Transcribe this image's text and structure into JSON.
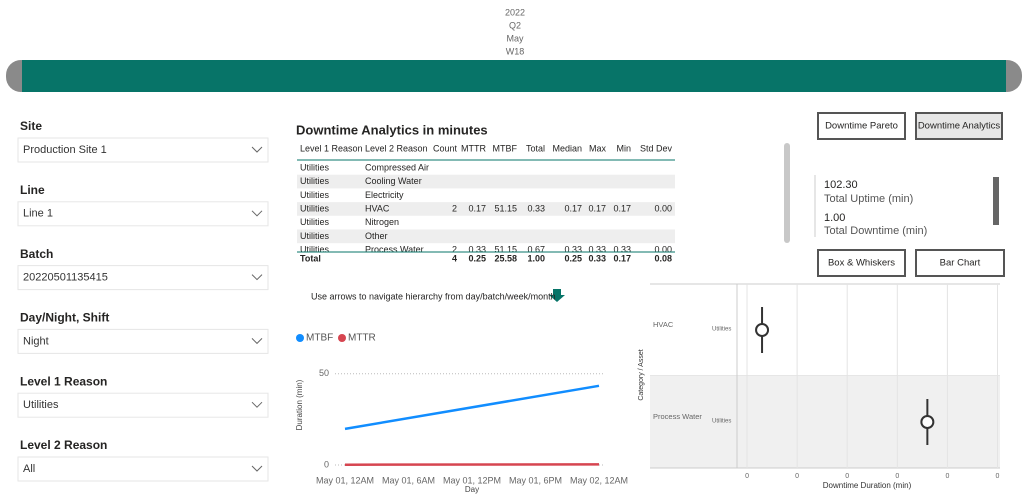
{
  "header": {
    "periods": [
      "2022",
      "Q2",
      "May",
      "W18"
    ]
  },
  "filters": [
    {
      "label": "Site",
      "value": "Production Site 1"
    },
    {
      "label": "Line",
      "value": "Line 1"
    },
    {
      "label": "Batch",
      "value": "20220501135415"
    },
    {
      "label": "Day/Night, Shift",
      "value": "Night"
    },
    {
      "label": "Level 1 Reason",
      "value": "Utilities"
    },
    {
      "label": "Level 2 Reason",
      "value": "All"
    }
  ],
  "table": {
    "title": "Downtime Analytics in minutes",
    "columns": [
      "Level 1 Reason",
      "Level 2 Reason",
      "Count",
      "MTTR",
      "MTBF",
      "Total",
      "Median",
      "Max",
      "Min",
      "Std Dev"
    ],
    "rows": [
      [
        "Utilities",
        "Compressed Air"
      ],
      [
        "Utilities",
        "Cooling Water"
      ],
      [
        "Utilities",
        "Electricity"
      ],
      [
        "Utilities",
        "HVAC",
        "2",
        "0.17",
        "51.15",
        "0.33",
        "0.17",
        "0.17",
        "0.17",
        "0.00"
      ],
      [
        "Utilities",
        "Nitrogen"
      ],
      [
        "Utilities",
        "Other"
      ],
      [
        "Utilities",
        "Process Water",
        "2",
        "0.33",
        "51.15",
        "0.67",
        "0.33",
        "0.33",
        "0.33",
        "0.00"
      ]
    ],
    "total": {
      "label": "Total",
      "values": [
        "4",
        "0.25",
        "25.58",
        "1.00",
        "0.25",
        "0.33",
        "0.17",
        "0.08"
      ]
    }
  },
  "hint": "Use arrows to navigate hierarchy from day/batch/week/month",
  "buttons": {
    "top": [
      "Downtime Pareto",
      "Downtime Analytics"
    ],
    "bottom": [
      "Box & Whiskers",
      "Bar Chart"
    ]
  },
  "kpis": [
    {
      "value": "102.30",
      "label": "Total Uptime (min)"
    },
    {
      "value": "1.00",
      "label": "Total Downtime (min)"
    }
  ],
  "line_chart": {
    "type": "line",
    "xlabel": "Day",
    "ylabel": "Duration (min)",
    "x": [
      0,
      24
    ],
    "xlim": [
      0,
      24
    ],
    "xticks": [
      {
        "value": 0,
        "label": "May 01, 12AM"
      },
      {
        "value": 6,
        "label": "May 01, 6AM"
      },
      {
        "value": 12,
        "label": "May 01, 12PM"
      },
      {
        "value": 18,
        "label": "May 01, 6PM"
      },
      {
        "value": 24,
        "label": "May 02, 12AM"
      }
    ],
    "ylim": [
      0,
      57
    ],
    "yticks": [
      0,
      50
    ],
    "series": [
      {
        "name": "MTBF",
        "color": "#118dff",
        "values": [
          19.8,
          43.4
        ]
      },
      {
        "name": "MTTR",
        "color": "#d64550",
        "values": [
          0.17,
          0.33
        ]
      }
    ]
  },
  "box_chart": {
    "type": "box",
    "xlabel": "Downtime Duration (min)",
    "ylabel": "Category / Asset",
    "categories": [
      "HVAC",
      "Process Water"
    ],
    "groups": [
      "Utilities",
      "Utilities"
    ],
    "values": [
      0.03,
      0.36
    ],
    "xlim": [
      -0.02,
      0.505
    ],
    "xticks": [
      0,
      {
        "value": 0.1,
        "label": "0"
      },
      {
        "value": 0.2,
        "label": "0"
      },
      {
        "value": 0.3,
        "label": "0"
      },
      {
        "value": 0.4,
        "label": "0"
      },
      {
        "value": 0.5,
        "label": "0"
      }
    ]
  }
}
